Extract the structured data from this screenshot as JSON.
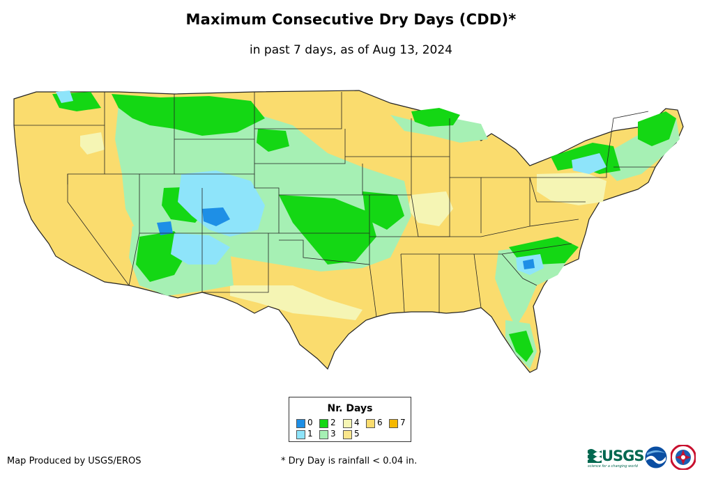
{
  "title": "Maximum Consecutive Dry Days (CDD)*",
  "subtitle": "in past 7 days, as of Aug 13, 2024",
  "legend": {
    "title": "Nr. Days",
    "items": [
      {
        "label": "0",
        "color": "#1e8fe6"
      },
      {
        "label": "1",
        "color": "#8ee4fa"
      },
      {
        "label": "2",
        "color": "#14d714"
      },
      {
        "label": "3",
        "color": "#a6f0b4"
      },
      {
        "label": "4",
        "color": "#f5f5b4"
      },
      {
        "label": "5",
        "color": "#fae68c"
      },
      {
        "label": "6",
        "color": "#fadc6e"
      },
      {
        "label": "7",
        "color": "#f5b800"
      }
    ]
  },
  "credit": "Map Produced by USGS/EROS",
  "footnote": "* Dry Day is rainfall < 0.04 in.",
  "logos": {
    "usgs": "USGS",
    "usgs_tagline": "science for a changing world",
    "noaa": "noaa-logo",
    "nws": "nws-logo"
  }
}
